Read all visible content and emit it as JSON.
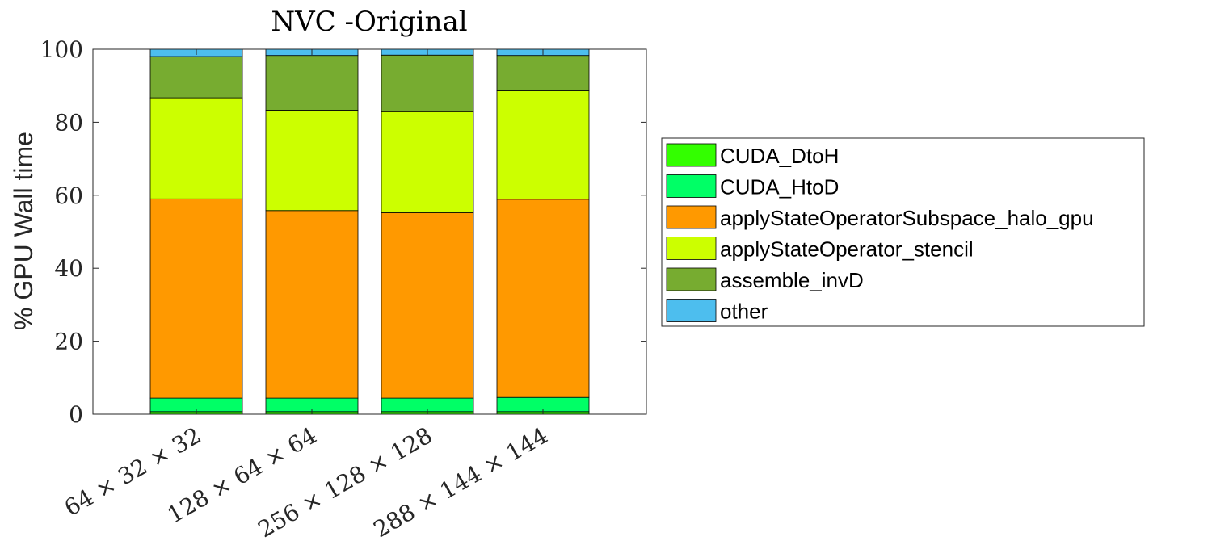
{
  "chart_data": {
    "type": "bar",
    "stacked": true,
    "title": "NVC -Original",
    "xlabel": "",
    "ylabel": "% GPU Wall time",
    "ylim": [
      0,
      100
    ],
    "yticks": [
      0,
      20,
      40,
      60,
      80,
      100
    ],
    "ytick_labels": [
      "0",
      "20",
      "40",
      "60",
      "80",
      "100"
    ],
    "categories": [
      "64 × 32 × 32",
      "128 × 64 × 64",
      "256 × 128 × 128",
      "288 × 144 × 144"
    ],
    "grid": false,
    "legend_position": "right",
    "series": [
      {
        "name": "CUDA_DtoH",
        "color": "#33ff00",
        "values": [
          0.7,
          0.7,
          0.7,
          0.7
        ]
      },
      {
        "name": "CUDA_HtoD",
        "color": "#00ff66",
        "values": [
          3.7,
          3.7,
          3.7,
          3.9
        ]
      },
      {
        "name": "applyStateOperatorSubspace_halo_gpu",
        "color": "#ff9900",
        "values": [
          54.6,
          51.4,
          50.8,
          54.3
        ]
      },
      {
        "name": "applyStateOperator_stencil",
        "color": "#ccff00",
        "values": [
          27.7,
          27.5,
          27.7,
          29.7
        ]
      },
      {
        "name": "assemble_invD",
        "color": "#77ac30",
        "values": [
          11.3,
          15.0,
          15.5,
          9.7
        ]
      },
      {
        "name": "other",
        "color": "#4dbeee",
        "values": [
          2.0,
          1.7,
          1.6,
          1.7
        ]
      }
    ]
  }
}
